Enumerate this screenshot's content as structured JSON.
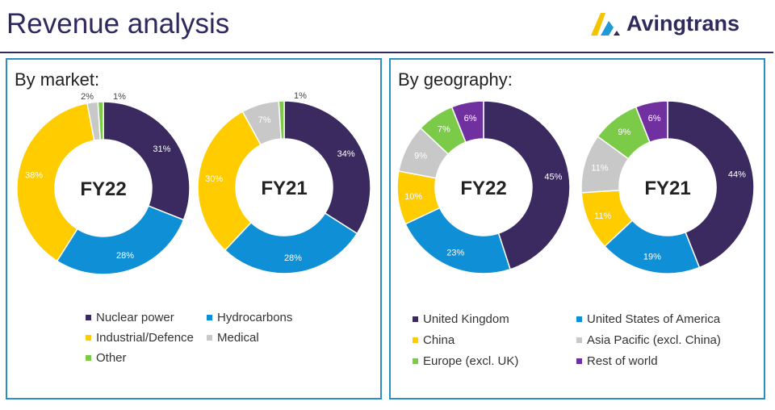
{
  "title": "Revenue analysis",
  "logo_text": "Avingtrans",
  "market": {
    "heading": "By market:"
  },
  "geography": {
    "heading": "By geography:"
  },
  "chart_data": [
    {
      "type": "pie",
      "variant": "donut",
      "panel": "market",
      "title": "FY22",
      "categories": [
        "Nuclear power",
        "Hydrocarbons",
        "Industrial/Defence",
        "Medical",
        "Other"
      ],
      "values": [
        31,
        28,
        38,
        2,
        1
      ],
      "labels": [
        "31%",
        "28%",
        "38%",
        "2%",
        "1%"
      ],
      "colors": [
        "#3a2a5f",
        "#0f8fd5",
        "#ffcc00",
        "#c8c8c8",
        "#7ccb48"
      ]
    },
    {
      "type": "pie",
      "variant": "donut",
      "panel": "market",
      "title": "FY21",
      "categories": [
        "Nuclear power",
        "Hydrocarbons",
        "Industrial/Defence",
        "Medical",
        "Other"
      ],
      "values": [
        34,
        28,
        30,
        7,
        1
      ],
      "labels": [
        "34%",
        "28%",
        "30%",
        "7%",
        "1%"
      ],
      "colors": [
        "#3a2a5f",
        "#0f8fd5",
        "#ffcc00",
        "#c8c8c8",
        "#7ccb48"
      ]
    },
    {
      "type": "pie",
      "variant": "donut",
      "panel": "geography",
      "title": "FY22",
      "categories": [
        "United Kingdom",
        "United States of America",
        "China",
        "Asia Pacific (excl. China)",
        "Europe (excl. UK)",
        "Rest of world"
      ],
      "values": [
        45,
        23,
        10,
        9,
        7,
        6
      ],
      "labels": [
        "45%",
        "23%",
        "10%",
        "9%",
        "7%",
        "6%"
      ],
      "colors": [
        "#3a2a5f",
        "#0f8fd5",
        "#ffcc00",
        "#c8c8c8",
        "#7ccb48",
        "#7030a0"
      ]
    },
    {
      "type": "pie",
      "variant": "donut",
      "panel": "geography",
      "title": "FY21",
      "categories": [
        "United Kingdom",
        "United States of America",
        "China",
        "Asia Pacific (excl. China)",
        "Europe (excl. UK)",
        "Rest of world"
      ],
      "values": [
        44,
        19,
        11,
        11,
        9,
        6
      ],
      "labels": [
        "44%",
        "19%",
        "11%",
        "11%",
        "9%",
        "6%"
      ],
      "colors": [
        "#3a2a5f",
        "#0f8fd5",
        "#ffcc00",
        "#c8c8c8",
        "#7ccb48",
        "#7030a0"
      ]
    }
  ]
}
